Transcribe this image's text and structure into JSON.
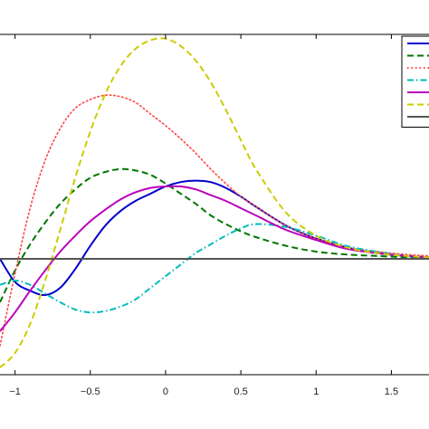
{
  "chart_data": {
    "type": "line",
    "title": "",
    "xlabel": "",
    "ylabel": "",
    "xlim": [
      -1.1,
      1.75
    ],
    "ylim": [
      -0.8,
      1.55
    ],
    "grid": false,
    "legend_position": "top-right",
    "x_ticks": [
      -1,
      -0.5,
      0,
      0.5,
      1,
      1.5
    ],
    "x_tick_labels": [
      "−1",
      "−0.5",
      "0",
      "0.5",
      "1",
      "1.5"
    ],
    "series": [
      {
        "color": "#0000cc",
        "dash": "solid",
        "x": [
          -1.1,
          -1.0,
          -0.9,
          -0.8,
          -0.7,
          -0.6,
          -0.5,
          -0.4,
          -0.3,
          -0.2,
          -0.1,
          0.0,
          0.1,
          0.2,
          0.3,
          0.4,
          0.5,
          0.6,
          0.8,
          1.0,
          1.2,
          1.4,
          1.6,
          1.75
        ],
        "y": [
          0.0,
          -0.16,
          -0.22,
          -0.25,
          -0.2,
          -0.07,
          0.09,
          0.23,
          0.33,
          0.4,
          0.45,
          0.5,
          0.53,
          0.54,
          0.53,
          0.49,
          0.43,
          0.36,
          0.23,
          0.14,
          0.08,
          0.04,
          0.02,
          0.01
        ]
      },
      {
        "color": "#007700",
        "dash": "dashed",
        "x": [
          -1.1,
          -1.0,
          -0.9,
          -0.8,
          -0.7,
          -0.6,
          -0.5,
          -0.4,
          -0.3,
          -0.2,
          -0.1,
          0.0,
          0.1,
          0.2,
          0.3,
          0.4,
          0.5,
          0.6,
          0.8,
          1.0,
          1.2,
          1.4,
          1.6,
          1.75
        ],
        "y": [
          -0.3,
          -0.08,
          0.1,
          0.25,
          0.38,
          0.48,
          0.56,
          0.6,
          0.62,
          0.61,
          0.58,
          0.52,
          0.45,
          0.38,
          0.3,
          0.24,
          0.19,
          0.15,
          0.09,
          0.05,
          0.03,
          0.02,
          0.01,
          0.0
        ]
      },
      {
        "color": "#ff4444",
        "dash": "dotted",
        "x": [
          -1.1,
          -1.0,
          -0.9,
          -0.8,
          -0.7,
          -0.6,
          -0.5,
          -0.4,
          -0.3,
          -0.2,
          -0.1,
          0.0,
          0.1,
          0.2,
          0.3,
          0.4,
          0.5,
          0.6,
          0.8,
          1.0,
          1.2,
          1.4,
          1.6,
          1.75
        ],
        "y": [
          -0.6,
          -0.1,
          0.35,
          0.68,
          0.9,
          1.04,
          1.1,
          1.13,
          1.12,
          1.08,
          1.0,
          0.92,
          0.83,
          0.73,
          0.62,
          0.52,
          0.43,
          0.36,
          0.23,
          0.14,
          0.08,
          0.05,
          0.03,
          0.02
        ]
      },
      {
        "color": "#00bbbb",
        "dash": "dash-dot",
        "x": [
          -1.1,
          -1.0,
          -0.9,
          -0.8,
          -0.7,
          -0.6,
          -0.5,
          -0.4,
          -0.3,
          -0.2,
          -0.1,
          0.0,
          0.1,
          0.2,
          0.3,
          0.4,
          0.5,
          0.6,
          0.8,
          1.0,
          1.2,
          1.4,
          1.6,
          1.75
        ],
        "y": [
          -0.18,
          -0.15,
          -0.18,
          -0.24,
          -0.3,
          -0.35,
          -0.37,
          -0.36,
          -0.33,
          -0.28,
          -0.2,
          -0.12,
          -0.04,
          0.04,
          0.1,
          0.16,
          0.21,
          0.24,
          0.22,
          0.16,
          0.09,
          0.05,
          0.02,
          0.01
        ]
      },
      {
        "color": "#bb00bb",
        "dash": "solid",
        "x": [
          -1.1,
          -1.0,
          -0.9,
          -0.8,
          -0.7,
          -0.6,
          -0.5,
          -0.4,
          -0.3,
          -0.2,
          -0.1,
          0.0,
          0.1,
          0.2,
          0.3,
          0.4,
          0.5,
          0.6,
          0.8,
          1.0,
          1.2,
          1.4,
          1.6,
          1.75
        ],
        "y": [
          -0.5,
          -0.37,
          -0.22,
          -0.08,
          0.05,
          0.16,
          0.26,
          0.34,
          0.41,
          0.46,
          0.49,
          0.5,
          0.5,
          0.48,
          0.44,
          0.4,
          0.35,
          0.3,
          0.2,
          0.13,
          0.07,
          0.04,
          0.02,
          0.01
        ]
      },
      {
        "color": "#cccc00",
        "dash": "dashed",
        "x": [
          -1.1,
          -1.0,
          -0.9,
          -0.8,
          -0.7,
          -0.6,
          -0.5,
          -0.4,
          -0.3,
          -0.2,
          -0.1,
          0.0,
          0.1,
          0.2,
          0.3,
          0.4,
          0.5,
          0.6,
          0.8,
          1.0,
          1.2,
          1.4,
          1.6,
          1.75
        ],
        "y": [
          -0.75,
          -0.65,
          -0.45,
          -0.15,
          0.2,
          0.56,
          0.88,
          1.14,
          1.33,
          1.45,
          1.51,
          1.52,
          1.47,
          1.37,
          1.22,
          1.03,
          0.82,
          0.62,
          0.32,
          0.16,
          0.08,
          0.04,
          0.02,
          0.01
        ]
      },
      {
        "color": "#555555",
        "dash": "solid",
        "x": [
          -1.1,
          1.75
        ],
        "y": [
          0.0,
          0.0
        ]
      }
    ]
  }
}
